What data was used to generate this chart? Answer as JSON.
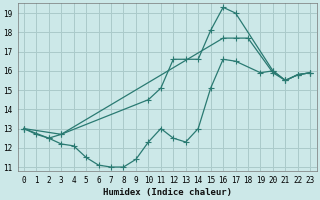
{
  "xlabel": "Humidex (Indice chaleur)",
  "bg_color": "#cce8e8",
  "line_color": "#2a7a72",
  "grid_color": "#aacaca",
  "xlim": [
    -0.5,
    23.5
  ],
  "ylim": [
    10.8,
    19.5
  ],
  "yticks": [
    11,
    12,
    13,
    14,
    15,
    16,
    17,
    18,
    19
  ],
  "xticks": [
    0,
    1,
    2,
    3,
    4,
    5,
    6,
    7,
    8,
    9,
    10,
    11,
    12,
    13,
    14,
    15,
    16,
    17,
    18,
    19,
    20,
    21,
    22,
    23
  ],
  "line1_x": [
    0,
    1,
    2,
    3,
    4,
    5,
    6,
    7,
    8,
    9,
    10,
    11,
    12,
    13,
    14,
    15,
    16,
    17,
    19,
    20,
    21,
    22,
    23
  ],
  "line1_y": [
    13.0,
    12.7,
    12.5,
    12.2,
    12.1,
    11.5,
    11.1,
    11.0,
    11.0,
    11.4,
    12.3,
    13.0,
    12.5,
    12.3,
    13.0,
    15.1,
    16.6,
    16.5,
    15.9,
    16.0,
    15.5,
    15.8,
    15.9
  ],
  "line2_x": [
    0,
    2,
    3,
    10,
    11,
    12,
    13,
    14,
    15,
    16,
    17,
    20,
    21,
    22,
    23
  ],
  "line2_y": [
    13.0,
    12.5,
    12.7,
    14.5,
    15.1,
    16.6,
    16.6,
    16.6,
    18.1,
    19.3,
    19.0,
    16.0,
    15.5,
    15.8,
    15.9
  ],
  "line3_x": [
    0,
    3,
    16,
    17,
    18,
    20,
    21,
    22,
    23
  ],
  "line3_y": [
    13.0,
    12.7,
    17.7,
    17.7,
    17.7,
    15.9,
    15.5,
    15.8,
    15.9
  ]
}
